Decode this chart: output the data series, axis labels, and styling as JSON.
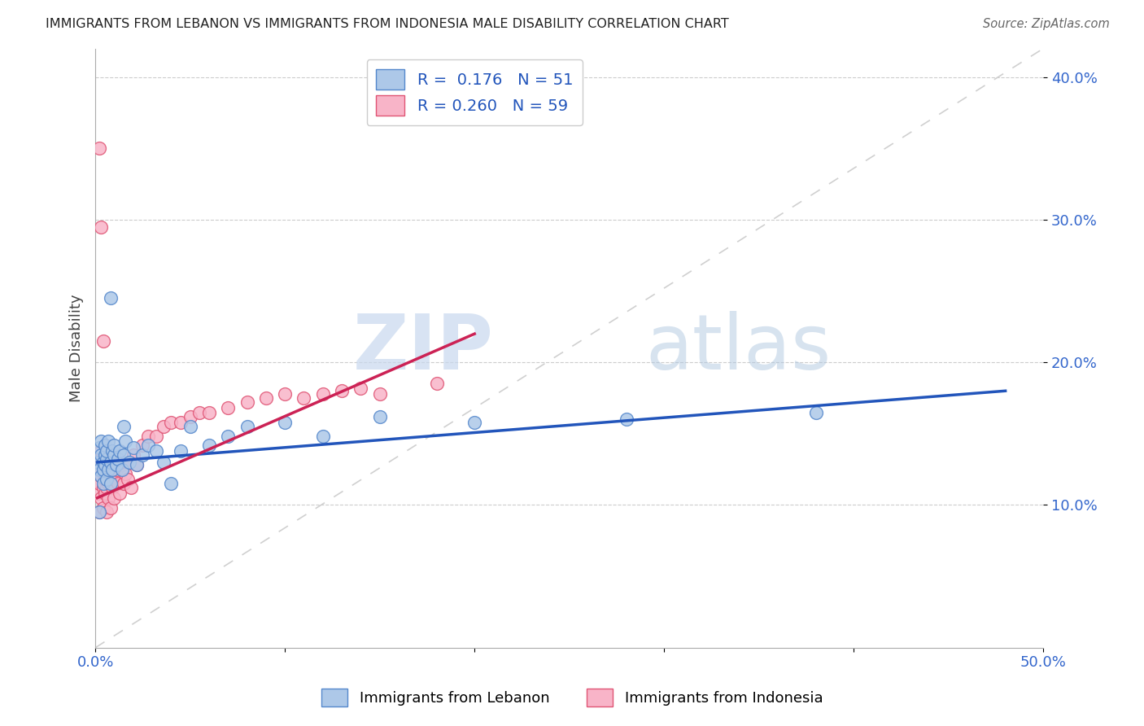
{
  "title": "IMMIGRANTS FROM LEBANON VS IMMIGRANTS FROM INDONESIA MALE DISABILITY CORRELATION CHART",
  "source": "Source: ZipAtlas.com",
  "ylabel": "Male Disability",
  "xlim": [
    0.0,
    0.5
  ],
  "ylim": [
    0.0,
    0.42
  ],
  "ytick_vals": [
    0.1,
    0.2,
    0.3,
    0.4
  ],
  "ytick_labels": [
    "10.0%",
    "20.0%",
    "30.0%",
    "40.0%"
  ],
  "xtick_vals": [
    0.0,
    0.1,
    0.2,
    0.3,
    0.4,
    0.5
  ],
  "xtick_labels": [
    "0.0%",
    "",
    "",
    "",
    "",
    "50.0%"
  ],
  "lebanon_color": "#adc8e8",
  "indonesia_color": "#f8b4c8",
  "lebanon_edge": "#5588cc",
  "indonesia_edge": "#e05575",
  "trendline_lebanon_color": "#2255bb",
  "trendline_indonesia_color": "#cc2255",
  "diagonal_color": "#d0d0d0",
  "legend_r_lebanon": "0.176",
  "legend_n_lebanon": "51",
  "legend_r_indonesia": "0.260",
  "legend_n_indonesia": "59",
  "legend_label_lebanon": "Immigrants from Lebanon",
  "legend_label_indonesia": "Immigrants from Indonesia",
  "watermark_zip": "ZIP",
  "watermark_atlas": "atlas",
  "lebanon_x": [
    0.001,
    0.002,
    0.002,
    0.003,
    0.003,
    0.003,
    0.004,
    0.004,
    0.004,
    0.005,
    0.005,
    0.005,
    0.006,
    0.006,
    0.006,
    0.007,
    0.007,
    0.008,
    0.008,
    0.009,
    0.009,
    0.01,
    0.01,
    0.011,
    0.012,
    0.013,
    0.014,
    0.015,
    0.016,
    0.018,
    0.02,
    0.022,
    0.025,
    0.028,
    0.032,
    0.036,
    0.04,
    0.045,
    0.05,
    0.06,
    0.07,
    0.08,
    0.1,
    0.12,
    0.15,
    0.2,
    0.28,
    0.38,
    0.002,
    0.008,
    0.015
  ],
  "lebanon_y": [
    0.13,
    0.125,
    0.14,
    0.135,
    0.145,
    0.12,
    0.13,
    0.125,
    0.115,
    0.135,
    0.128,
    0.142,
    0.132,
    0.118,
    0.138,
    0.125,
    0.145,
    0.13,
    0.115,
    0.125,
    0.138,
    0.135,
    0.142,
    0.128,
    0.132,
    0.138,
    0.125,
    0.135,
    0.145,
    0.13,
    0.14,
    0.128,
    0.135,
    0.142,
    0.138,
    0.13,
    0.115,
    0.138,
    0.155,
    0.142,
    0.148,
    0.155,
    0.158,
    0.148,
    0.162,
    0.158,
    0.16,
    0.165,
    0.095,
    0.245,
    0.155
  ],
  "indonesia_x": [
    0.001,
    0.001,
    0.002,
    0.002,
    0.002,
    0.003,
    0.003,
    0.003,
    0.004,
    0.004,
    0.004,
    0.005,
    0.005,
    0.005,
    0.006,
    0.006,
    0.006,
    0.007,
    0.007,
    0.007,
    0.008,
    0.008,
    0.009,
    0.009,
    0.01,
    0.01,
    0.011,
    0.012,
    0.013,
    0.014,
    0.015,
    0.016,
    0.017,
    0.018,
    0.019,
    0.02,
    0.022,
    0.025,
    0.028,
    0.032,
    0.036,
    0.04,
    0.045,
    0.05,
    0.055,
    0.06,
    0.07,
    0.08,
    0.09,
    0.1,
    0.11,
    0.12,
    0.13,
    0.14,
    0.15,
    0.18,
    0.002,
    0.003,
    0.004
  ],
  "indonesia_y": [
    0.125,
    0.108,
    0.115,
    0.13,
    0.095,
    0.12,
    0.105,
    0.138,
    0.112,
    0.125,
    0.098,
    0.118,
    0.13,
    0.108,
    0.125,
    0.112,
    0.095,
    0.128,
    0.115,
    0.105,
    0.12,
    0.098,
    0.112,
    0.13,
    0.118,
    0.105,
    0.125,
    0.115,
    0.108,
    0.128,
    0.115,
    0.122,
    0.118,
    0.13,
    0.112,
    0.135,
    0.128,
    0.142,
    0.148,
    0.148,
    0.155,
    0.158,
    0.158,
    0.162,
    0.165,
    0.165,
    0.168,
    0.172,
    0.175,
    0.178,
    0.175,
    0.178,
    0.18,
    0.182,
    0.178,
    0.185,
    0.35,
    0.295,
    0.215
  ],
  "leb_trend_x": [
    0.001,
    0.48
  ],
  "leb_trend_y": [
    0.13,
    0.18
  ],
  "ind_trend_x": [
    0.001,
    0.2
  ],
  "ind_trend_y": [
    0.105,
    0.22
  ]
}
